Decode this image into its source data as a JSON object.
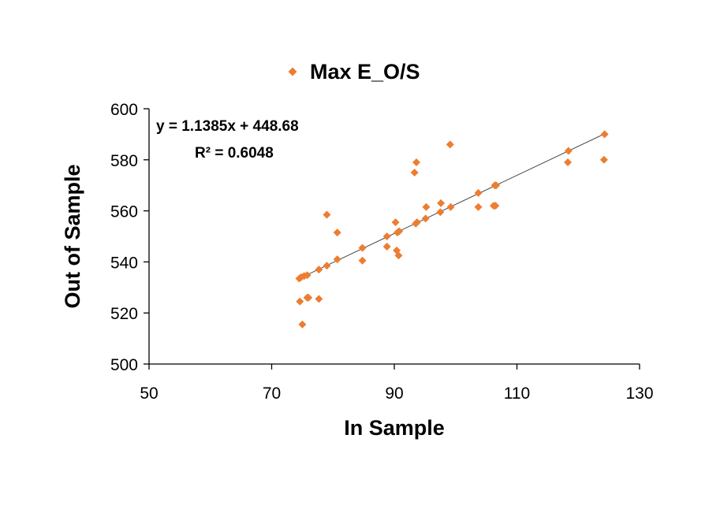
{
  "chart_data": {
    "type": "scatter",
    "xlabel": "In Sample",
    "ylabel": "Out of Sample",
    "xlim": [
      50,
      130
    ],
    "ylim": [
      500,
      600
    ],
    "x_ticks": [
      50,
      70,
      90,
      110,
      130
    ],
    "y_ticks": [
      500,
      520,
      540,
      560,
      580,
      600
    ],
    "grid": false,
    "legend": "top",
    "marker": "diamond",
    "colors": {
      "marker": "#ED7D31",
      "trendline": "#404040",
      "axis": "#000000"
    },
    "series": [
      {
        "name": "Max E_O/S",
        "x": [
          74.5,
          74.8,
          75.3,
          75.8,
          76.0,
          74.6,
          75.0,
          75.8,
          77.7,
          77.7,
          79.0,
          79.0,
          80.7,
          80.7,
          84.8,
          84.8,
          88.8,
          88.8,
          90.2,
          90.4,
          90.5,
          90.7,
          90.8,
          93.3,
          93.5,
          93.6,
          93.7,
          95.1,
          95.2,
          97.5,
          97.6,
          99.1,
          99.2,
          103.7,
          103.7,
          106.2,
          106.4,
          106.5,
          106.6,
          118.3,
          118.4,
          124.2,
          124.3
        ],
        "y": [
          533.5,
          534.0,
          534.5,
          534.8,
          526.0,
          524.5,
          515.5,
          526.0,
          537.0,
          525.5,
          538.5,
          558.5,
          541.0,
          551.5,
          545.5,
          540.5,
          550.0,
          546.0,
          555.5,
          544.5,
          551.5,
          542.5,
          552.0,
          575.0,
          555.0,
          579.0,
          555.5,
          557.0,
          561.5,
          559.5,
          563.0,
          586.0,
          561.5,
          567.0,
          561.5,
          562.0,
          570.0,
          562.0,
          570.0,
          579.0,
          583.5,
          580.0,
          590.0
        ]
      }
    ],
    "trendline": {
      "type": "linear",
      "slope": 1.1385,
      "intercept": 448.68,
      "x_range": [
        74.5,
        124.3
      ],
      "equation": "y = 1.1385x + 448.68",
      "r_squared": "R² = 0.6048"
    }
  }
}
